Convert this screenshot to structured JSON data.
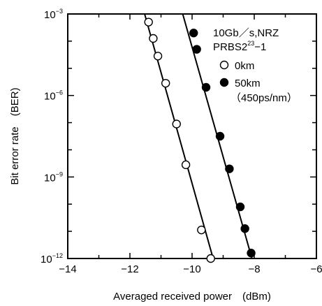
{
  "chart_data": {
    "type": "scatter",
    "xlabel": "Averaged received power　(dBm)",
    "ylabel": "Bit error rate　(BER)",
    "xlim": [
      -14,
      -6
    ],
    "ylog": true,
    "ylim_exponent": [
      -12,
      -3
    ],
    "x_ticks": [
      -14,
      -12,
      -10,
      -8,
      -6
    ],
    "x_tick_labels": [
      "−14",
      "−12",
      "−10",
      "−8",
      "−6"
    ],
    "y_ticks": [
      -3,
      -6,
      -9,
      -12
    ],
    "y_tick_base": "10",
    "y_tick_exponents": [
      "−3",
      "−6",
      "−9",
      "−12"
    ],
    "grid": false,
    "legend_position": "top-right",
    "legend_title_lines": {
      "line1": "10Gb／s,NRZ",
      "line2_prefix": "PRBS2",
      "line2_sup": "23",
      "line2_suffix": "−1"
    },
    "series": [
      {
        "name": "0km",
        "marker": "open-circle",
        "points": [
          {
            "x": -11.4,
            "y_exp": -3.3
          },
          {
            "x": -11.25,
            "y_exp": -3.9
          },
          {
            "x": -11.1,
            "y_exp": -4.55
          },
          {
            "x": -10.85,
            "y_exp": -5.55
          },
          {
            "x": -10.5,
            "y_exp": -7.05
          },
          {
            "x": -10.2,
            "y_exp": -8.55
          },
          {
            "x": -9.7,
            "y_exp": -10.95
          },
          {
            "x": -9.4,
            "y_exp": -12.0
          }
        ],
        "fit_line": [
          {
            "x": -11.6,
            "y_exp": -2.7
          },
          {
            "x": -9.25,
            "y_exp": -12.3
          }
        ]
      },
      {
        "name": "50km",
        "annotation": "（450ps/nm）",
        "marker": "filled-circle",
        "points": [
          {
            "x": -9.95,
            "y_exp": -3.7
          },
          {
            "x": -9.85,
            "y_exp": -4.3
          },
          {
            "x": -9.55,
            "y_exp": -5.7
          },
          {
            "x": -9.1,
            "y_exp": -7.5
          },
          {
            "x": -8.8,
            "y_exp": -8.7
          },
          {
            "x": -8.45,
            "y_exp": -10.1
          },
          {
            "x": -8.3,
            "y_exp": -10.9
          },
          {
            "x": -8.1,
            "y_exp": -11.8
          }
        ],
        "fit_line": [
          {
            "x": -10.45,
            "y_exp": -2.4
          },
          {
            "x": -8.0,
            "y_exp": -12.3
          }
        ]
      }
    ]
  }
}
